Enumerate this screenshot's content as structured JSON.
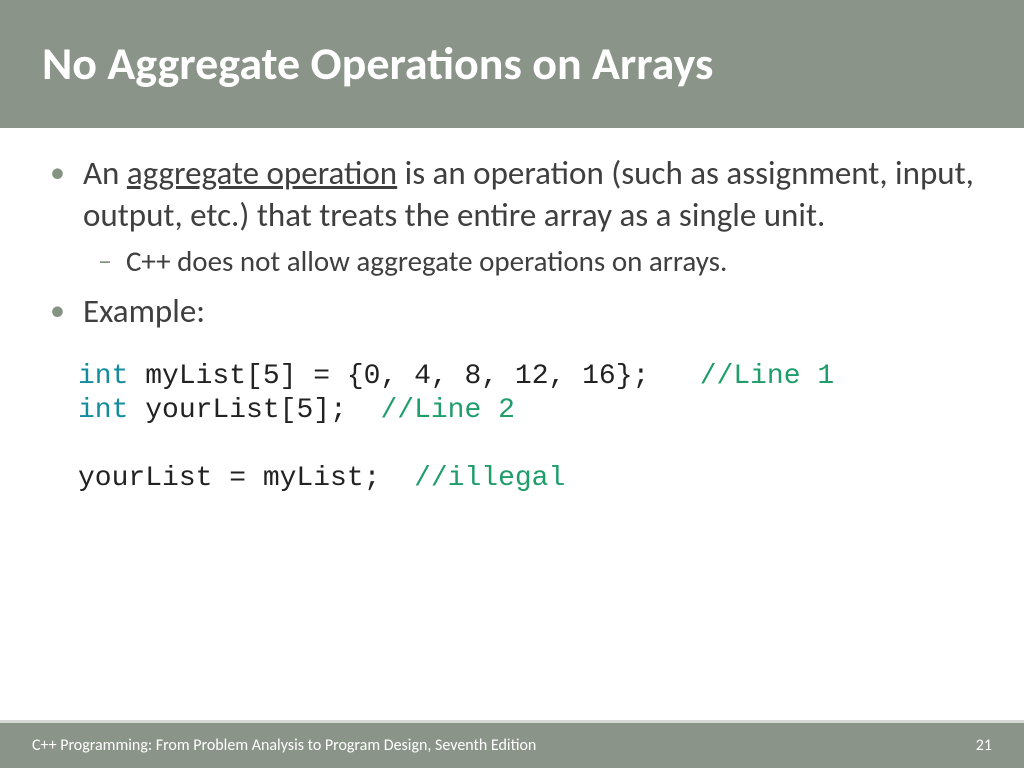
{
  "title": "No Aggregate Operations on Arrays",
  "bullets": {
    "p1_pre": "An ",
    "p1_u": "aggregate operation",
    "p1_post": " is an operation (such as assignment, input, output, etc.) that treats the entire array as a single unit.",
    "sub1": "C++ does not allow aggregate operations on arrays.",
    "p2": "Example:"
  },
  "code": {
    "l1_kw": "int",
    "l1_a": " myList[5] = {0, 4, 8, 12, 16};   ",
    "l1_cm": "//Line 1",
    "l2_kw": "int",
    "l2_a": " yourList[5];  ",
    "l2_cm": "//Line 2",
    "l3_a": "yourList = myList;  ",
    "l3_cm": "//illegal"
  },
  "footer": {
    "book": "C++ Programming: From Problem Analysis to Program Design, Seventh Edition",
    "page": "21"
  },
  "colors": {
    "header_bg": "#8a9488",
    "title_color": "#ffffff",
    "body_text": "#3f3f3f",
    "bullet_dot": "#859383",
    "code_keyword": "#138d9e",
    "code_comment": "#1f9d6b",
    "code_text": "#222222",
    "footer_border": "#d6d9d5"
  },
  "fonts": {
    "title_size_pt": 34,
    "body_size_pt": 25,
    "sub_size_pt": 22,
    "code_size_pt": 21,
    "footer_size_pt": 12
  }
}
